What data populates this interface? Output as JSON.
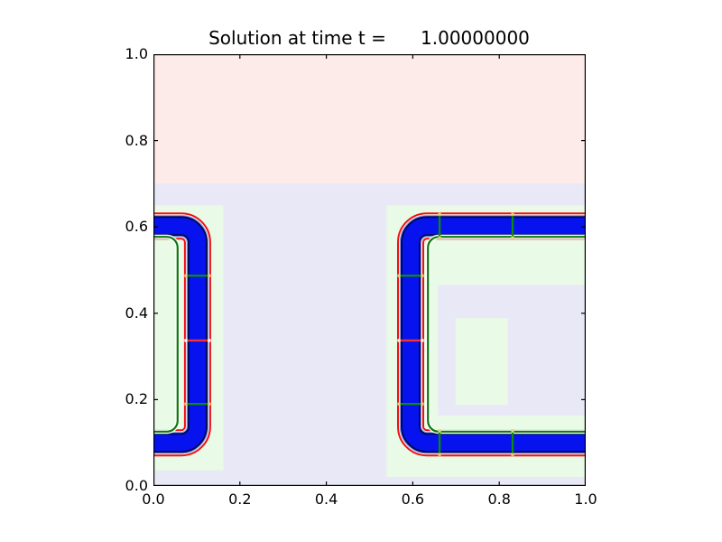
{
  "title": {
    "text": "Solution at time t =      1.00000000"
  },
  "chart_data": {
    "type": "heatmap",
    "title": "Solution at time t =      1.00000000",
    "xlabel": "",
    "ylabel": "",
    "xlim": [
      0.0,
      1.0
    ],
    "ylim": [
      0.0,
      1.0
    ],
    "grid": false,
    "legend": false,
    "tick_values": [
      0.0,
      0.2,
      0.4,
      0.6,
      0.8,
      1.0
    ],
    "x_tick_labels": [
      "0.0",
      "0.2",
      "0.4",
      "0.6",
      "0.8",
      "1.0"
    ],
    "y_tick_labels": [
      "0.0",
      "0.2",
      "0.4",
      "0.6",
      "0.8",
      "1.0"
    ],
    "palette": {
      "lavender": "#e9e8f7",
      "pink": "#fcebe8",
      "lightgreen": "#e9fae7",
      "white": "#ffffff",
      "paleblue": "#8fa0f2",
      "navy": "#000a50",
      "blue": "#0713ef",
      "red": "#ee1111",
      "innergreen": "#0b7a0b",
      "markergreen": "#0b8a0b",
      "markerred": "#f53333",
      "dotyellow": "#e8d27a",
      "dotwhite": "#ffffff",
      "axis": "#000000"
    },
    "regions": [
      {
        "name": "background",
        "x": [
          0.0,
          1.0
        ],
        "y": [
          0.0,
          1.0
        ],
        "color": "lavender"
      },
      {
        "name": "upper-band",
        "x": [
          0.0,
          1.0
        ],
        "y": [
          0.7,
          1.0
        ],
        "color": "pink"
      },
      {
        "name": "left-patch",
        "x": [
          0.0,
          0.162
        ],
        "y": [
          0.036,
          0.65
        ],
        "color": "lightgreen"
      },
      {
        "name": "right-patch",
        "x": [
          0.539,
          1.0
        ],
        "y": [
          0.021,
          0.65
        ],
        "color": "lightgreen"
      },
      {
        "name": "right-inner-pocket",
        "x": [
          0.658,
          1.0
        ],
        "y": [
          0.163,
          0.466
        ],
        "color": "lavender"
      },
      {
        "name": "inner-rect",
        "x": [
          0.699,
          0.82
        ],
        "y": [
          0.188,
          0.389
        ],
        "color": "lightgreen"
      }
    ],
    "interfaces": [
      {
        "name": "left-bracket",
        "points": [
          [
            -0.03,
            0.602
          ],
          [
            0.102,
            0.602
          ],
          [
            0.102,
            0.1
          ],
          [
            -0.03,
            0.1
          ]
        ],
        "inner_points": [
          [
            -0.03,
            0.577
          ],
          [
            0.056,
            0.577
          ],
          [
            0.056,
            0.126
          ],
          [
            -0.03,
            0.126
          ]
        ]
      },
      {
        "name": "right-bracket",
        "points": [
          [
            1.03,
            0.602
          ],
          [
            0.595,
            0.602
          ],
          [
            0.595,
            0.1
          ],
          [
            1.03,
            0.1
          ]
        ],
        "inner_points": [
          [
            1.03,
            0.577
          ],
          [
            0.635,
            0.577
          ],
          [
            0.635,
            0.126
          ],
          [
            1.03,
            0.126
          ]
        ]
      }
    ],
    "band_layers": [
      {
        "color": "red",
        "width": 30
      },
      {
        "color": "white",
        "width": 26
      },
      {
        "color": "paleblue",
        "width": 24.5
      },
      {
        "color": "navy",
        "width": 22
      },
      {
        "color": "blue",
        "width": 18
      }
    ],
    "corner_radius_px": 18,
    "inner_corner_radius_px": 12,
    "inner_line_width": 2.2,
    "inner_line_underlay_width": 5,
    "marker_half_px": 13,
    "markers": [
      {
        "dir": "h",
        "x": 0.102,
        "y": 0.487,
        "color": "markergreen",
        "dot": "dotyellow"
      },
      {
        "dir": "h",
        "x": 0.102,
        "y": 0.337,
        "color": "markerred",
        "dot": "dotwhite"
      },
      {
        "dir": "h",
        "x": 0.102,
        "y": 0.19,
        "color": "markergreen",
        "dot": "dotyellow"
      },
      {
        "dir": "h",
        "x": 0.595,
        "y": 0.487,
        "color": "markergreen",
        "dot": "dotyellow"
      },
      {
        "dir": "h",
        "x": 0.595,
        "y": 0.337,
        "color": "markerred",
        "dot": "dotwhite"
      },
      {
        "dir": "h",
        "x": 0.595,
        "y": 0.19,
        "color": "markergreen",
        "dot": "dotyellow"
      },
      {
        "dir": "v",
        "x": 0.662,
        "y": 0.602,
        "color": "markergreen",
        "dot": "dotyellow"
      },
      {
        "dir": "v",
        "x": 0.831,
        "y": 0.602,
        "color": "markergreen",
        "dot": "dotyellow"
      },
      {
        "dir": "v",
        "x": 0.662,
        "y": 0.1,
        "color": "markergreen",
        "dot": "dotyellow"
      },
      {
        "dir": "v",
        "x": 0.831,
        "y": 0.1,
        "color": "markergreen",
        "dot": "dotyellow"
      }
    ]
  }
}
